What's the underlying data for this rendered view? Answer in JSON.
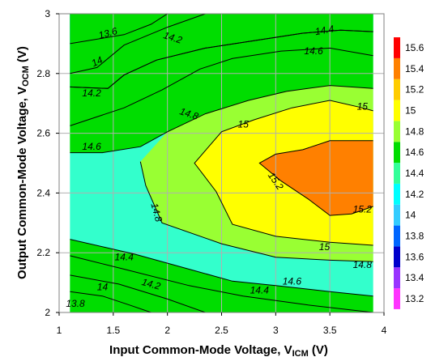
{
  "chart_data": {
    "type": "heatmap",
    "subtype": "filled-contour",
    "title": "",
    "xlabel": {
      "main": "Input Common-Mode Voltage, V",
      "sub": "ICM",
      "unit": " (V)"
    },
    "ylabel": {
      "main": "Output Common-Mode Voltage, V",
      "sub": "OCM",
      "unit": " (V)"
    },
    "xlim": [
      1,
      4
    ],
    "ylim": [
      2,
      3
    ],
    "data_xlim": [
      1.1,
      3.9
    ],
    "x_ticks": [
      "1",
      "1.5",
      "2",
      "2.5",
      "3",
      "3.5",
      "4"
    ],
    "y_ticks": [
      "2",
      "2.2",
      "2.4",
      "2.6",
      "2.8",
      "3"
    ],
    "grid": true,
    "colorbar": {
      "position": "right",
      "levels": [
        13.2,
        13.4,
        13.6,
        13.8,
        14,
        14.2,
        14.4,
        14.6,
        14.8,
        15,
        15.2,
        15.4,
        15.6
      ],
      "tick_labels": [
        "13.2",
        "13.4",
        "13.6",
        "13.8",
        "14",
        "14.2",
        "14.4",
        "14.6",
        "14.8",
        "15",
        "15.2",
        "15.4",
        "15.6"
      ],
      "colors": [
        "#ff33ff",
        "#9933ff",
        "#0000cc",
        "#0066ff",
        "#33ccff",
        "#00ffff",
        "#33ff99",
        "#00dd00",
        "#99ff33",
        "#ffff00",
        "#ffcc00",
        "#ff8000",
        "#ff0000"
      ]
    },
    "fill_base_color": "#33ffcc",
    "regions": [
      {
        "level": 13.2,
        "color": "#9933ff",
        "points": [
          [
            1.1,
            3
          ],
          [
            1.4,
            3
          ],
          [
            1.1,
            2.95
          ]
        ]
      },
      {
        "level": 13.4,
        "color": "#0000cc",
        "points": [
          [
            1.1,
            3
          ],
          [
            2.0,
            3
          ],
          [
            1.85,
            2.965
          ],
          [
            1.6,
            2.93
          ],
          [
            1.1,
            2.9
          ]
        ]
      },
      {
        "level": 13.8,
        "color": "#0066ff",
        "points": [
          [
            1.1,
            3
          ],
          [
            2.35,
            3
          ],
          [
            2.0,
            2.955
          ],
          [
            1.6,
            2.895
          ],
          [
            1.35,
            2.82
          ],
          [
            1.1,
            2.8
          ]
        ]
      },
      {
        "level": 14.0,
        "color": "#33ccff",
        "points": [
          [
            1.1,
            3
          ],
          [
            3.9,
            3
          ],
          [
            3.9,
            2.94
          ],
          [
            3.6,
            2.945
          ],
          [
            3.25,
            2.935
          ],
          [
            2.8,
            2.91
          ],
          [
            2.35,
            2.885
          ],
          [
            1.9,
            2.845
          ],
          [
            1.6,
            2.795
          ],
          [
            1.45,
            2.75
          ],
          [
            1.1,
            2.755
          ]
        ]
      },
      {
        "level": 14.2,
        "color": "#00ffff",
        "points": [
          [
            1.1,
            3
          ],
          [
            3.9,
            3
          ],
          [
            3.9,
            2.94
          ],
          [
            3.6,
            2.945
          ],
          [
            3.25,
            2.935
          ],
          [
            2.8,
            2.91
          ],
          [
            2.35,
            2.885
          ],
          [
            1.9,
            2.845
          ],
          [
            1.6,
            2.795
          ],
          [
            1.45,
            2.75
          ],
          [
            1.1,
            2.755
          ]
        ]
      },
      {
        "level": 14.4,
        "color": "#33ff99",
        "points": [
          [
            1.1,
            3
          ],
          [
            3.9,
            3
          ],
          [
            3.9,
            2.86
          ],
          [
            3.5,
            2.885
          ],
          [
            3.05,
            2.875
          ],
          [
            2.6,
            2.85
          ],
          [
            2.3,
            2.815
          ],
          [
            1.95,
            2.745
          ],
          [
            1.6,
            2.685
          ],
          [
            1.1,
            2.625
          ]
        ]
      },
      {
        "level": 14.6,
        "color": "#00dd00",
        "points": [
          [
            1.1,
            3
          ],
          [
            3.9,
            3
          ],
          [
            3.9,
            2.75
          ],
          [
            3.5,
            2.76
          ],
          [
            3.1,
            2.74
          ],
          [
            2.75,
            2.71
          ],
          [
            2.35,
            2.665
          ],
          [
            2.0,
            2.605
          ],
          [
            1.75,
            2.555
          ],
          [
            1.4,
            2.535
          ],
          [
            1.1,
            2.535
          ],
          [
            1.1,
            2.245
          ],
          [
            1.7,
            2.195
          ],
          [
            2.2,
            2.145
          ],
          [
            2.6,
            2.105
          ],
          [
            3.0,
            2.09
          ],
          [
            3.5,
            2.07
          ],
          [
            3.9,
            2.055
          ],
          [
            3.9,
            2.0
          ],
          [
            1.1,
            2.0
          ]
        ]
      },
      {
        "level": 14.8,
        "color": "#99ff33",
        "points": [
          [
            3.9,
            2.75
          ],
          [
            3.5,
            2.76
          ],
          [
            3.1,
            2.74
          ],
          [
            2.75,
            2.71
          ],
          [
            2.35,
            2.665
          ],
          [
            2.0,
            2.605
          ],
          [
            1.75,
            2.505
          ],
          [
            1.8,
            2.425
          ],
          [
            1.95,
            2.3
          ],
          [
            2.5,
            2.23
          ],
          [
            3.0,
            2.185
          ],
          [
            3.5,
            2.175
          ],
          [
            3.9,
            2.17
          ]
        ]
      },
      {
        "level": 15.0,
        "color": "#ffff00",
        "points": [
          [
            3.9,
            2.675
          ],
          [
            3.8,
            2.685
          ],
          [
            3.5,
            2.71
          ],
          [
            3.15,
            2.685
          ],
          [
            2.8,
            2.645
          ],
          [
            2.5,
            2.605
          ],
          [
            2.25,
            2.5
          ],
          [
            2.45,
            2.405
          ],
          [
            2.6,
            2.295
          ],
          [
            3.0,
            2.255
          ],
          [
            3.5,
            2.235
          ],
          [
            3.9,
            2.225
          ]
        ]
      },
      {
        "level": 15.2,
        "color": "#ff8000",
        "points": [
          [
            2.85,
            2.5
          ],
          [
            3.0,
            2.53
          ],
          [
            3.25,
            2.545
          ],
          [
            3.5,
            2.575
          ],
          [
            3.9,
            2.575
          ],
          [
            3.9,
            2.355
          ],
          [
            3.7,
            2.33
          ],
          [
            3.5,
            2.325
          ],
          [
            3.3,
            2.38
          ],
          [
            3.05,
            2.44
          ]
        ]
      }
    ],
    "contour_lines": [
      {
        "level": 13.6,
        "points": [
          [
            1.1,
            2.9
          ],
          [
            1.6,
            2.93
          ],
          [
            1.85,
            2.965
          ],
          [
            2.0,
            3
          ]
        ]
      },
      {
        "level": 13.8,
        "points": [
          [
            1.1,
            2.8
          ],
          [
            1.35,
            2.82
          ],
          [
            1.6,
            2.895
          ],
          [
            2.0,
            2.955
          ],
          [
            2.35,
            3
          ]
        ]
      },
      {
        "level": 14.0,
        "points": [
          [
            1.1,
            2.755
          ],
          [
            1.45,
            2.75
          ],
          [
            1.6,
            2.795
          ],
          [
            1.9,
            2.845
          ],
          [
            2.35,
            2.885
          ],
          [
            2.8,
            2.91
          ],
          [
            3.25,
            2.935
          ],
          [
            3.6,
            2.945
          ],
          [
            3.9,
            2.94
          ]
        ]
      },
      {
        "level": 14.2,
        "points": [
          [
            1.1,
            2.755
          ],
          [
            1.45,
            2.75
          ],
          [
            1.6,
            2.795
          ],
          [
            1.9,
            2.845
          ],
          [
            2.35,
            2.885
          ],
          [
            2.8,
            2.91
          ],
          [
            3.25,
            2.935
          ],
          [
            3.6,
            2.945
          ],
          [
            3.9,
            2.94
          ]
        ]
      },
      {
        "level": 14.4,
        "points": [
          [
            1.1,
            2.625
          ],
          [
            1.6,
            2.685
          ],
          [
            1.95,
            2.745
          ],
          [
            2.3,
            2.815
          ],
          [
            2.6,
            2.85
          ],
          [
            3.05,
            2.875
          ],
          [
            3.5,
            2.885
          ],
          [
            3.9,
            2.86
          ]
        ]
      },
      {
        "level": 14.6,
        "points": [
          [
            1.1,
            2.535
          ],
          [
            1.4,
            2.535
          ],
          [
            1.75,
            2.555
          ],
          [
            2.0,
            2.605
          ],
          [
            2.35,
            2.665
          ],
          [
            2.75,
            2.71
          ],
          [
            3.1,
            2.74
          ],
          [
            3.5,
            2.76
          ],
          [
            3.9,
            2.75
          ]
        ]
      },
      {
        "level": 14.8,
        "points": [
          [
            1.75,
            2.505
          ],
          [
            1.8,
            2.425
          ],
          [
            1.95,
            2.3
          ],
          [
            2.5,
            2.23
          ],
          [
            3.0,
            2.185
          ],
          [
            3.5,
            2.175
          ],
          [
            3.9,
            2.17
          ]
        ]
      },
      {
        "level": 15.0,
        "points": [
          [
            3.9,
            2.675
          ],
          [
            3.8,
            2.685
          ],
          [
            3.5,
            2.71
          ],
          [
            3.15,
            2.685
          ],
          [
            2.8,
            2.645
          ],
          [
            2.5,
            2.605
          ],
          [
            2.25,
            2.5
          ],
          [
            2.45,
            2.405
          ],
          [
            2.6,
            2.295
          ],
          [
            3.0,
            2.255
          ],
          [
            3.5,
            2.235
          ],
          [
            3.9,
            2.225
          ]
        ]
      },
      {
        "level": 15.2,
        "points": [
          [
            3.9,
            2.575
          ],
          [
            3.5,
            2.575
          ],
          [
            3.25,
            2.545
          ],
          [
            3.0,
            2.53
          ],
          [
            2.85,
            2.5
          ],
          [
            3.05,
            2.44
          ],
          [
            3.3,
            2.38
          ],
          [
            3.5,
            2.325
          ],
          [
            3.7,
            2.33
          ],
          [
            3.9,
            2.355
          ]
        ]
      },
      {
        "level": 14.4,
        "points": [
          [
            1.1,
            2.245
          ],
          [
            1.7,
            2.195
          ],
          [
            2.2,
            2.145
          ],
          [
            2.6,
            2.105
          ],
          [
            3.0,
            2.09
          ],
          [
            3.5,
            2.07
          ],
          [
            3.9,
            2.055
          ]
        ]
      },
      {
        "level": 14.2,
        "points": [
          [
            1.1,
            2.19
          ],
          [
            1.6,
            2.145
          ],
          [
            2.2,
            2.09
          ],
          [
            2.7,
            2.055
          ],
          [
            3.3,
            2.025
          ],
          [
            3.9,
            2.0
          ]
        ]
      },
      {
        "level": 14.0,
        "points": [
          [
            1.1,
            2.125
          ],
          [
            1.55,
            2.095
          ],
          [
            2.0,
            2.045
          ],
          [
            2.35,
            2.0
          ]
        ]
      },
      {
        "level": 13.8,
        "points": [
          [
            1.1,
            2.07
          ],
          [
            1.4,
            2.055
          ],
          [
            1.65,
            2.025
          ],
          [
            1.85,
            2.0
          ]
        ]
      }
    ],
    "annotations": [
      {
        "text": "13.6",
        "x": 1.45,
        "y": 2.935,
        "rotate": -15
      },
      {
        "text": "14",
        "x": 1.35,
        "y": 2.84,
        "rotate": -25
      },
      {
        "text": "14.2",
        "x": 2.05,
        "y": 2.92,
        "rotate": 18
      },
      {
        "text": "14.2",
        "x": 1.3,
        "y": 2.735,
        "rotate": 0
      },
      {
        "text": "14.4",
        "x": 3.45,
        "y": 2.945,
        "rotate": -10
      },
      {
        "text": "14.6",
        "x": 3.35,
        "y": 2.875,
        "rotate": 0
      },
      {
        "text": "14.8",
        "x": 2.2,
        "y": 2.665,
        "rotate": 18
      },
      {
        "text": "15",
        "x": 2.7,
        "y": 2.63,
        "rotate": 0
      },
      {
        "text": "15",
        "x": 3.8,
        "y": 2.69,
        "rotate": 0
      },
      {
        "text": "14.6",
        "x": 1.3,
        "y": 2.555,
        "rotate": 0
      },
      {
        "text": "15.2",
        "x": 3.0,
        "y": 2.44,
        "rotate": 55
      },
      {
        "text": "14.8",
        "x": 1.9,
        "y": 2.335,
        "rotate": 75
      },
      {
        "text": "15.2",
        "x": 3.8,
        "y": 2.345,
        "rotate": 0
      },
      {
        "text": "15",
        "x": 3.45,
        "y": 2.22,
        "rotate": 0
      },
      {
        "text": "14.8",
        "x": 3.8,
        "y": 2.16,
        "rotate": 0
      },
      {
        "text": "14.4",
        "x": 1.6,
        "y": 2.185,
        "rotate": 0
      },
      {
        "text": "14.6",
        "x": 3.15,
        "y": 2.105,
        "rotate": 0
      },
      {
        "text": "14.2",
        "x": 1.85,
        "y": 2.095,
        "rotate": 15
      },
      {
        "text": "14.4",
        "x": 2.85,
        "y": 2.075,
        "rotate": 0
      },
      {
        "text": "14",
        "x": 1.4,
        "y": 2.085,
        "rotate": 0
      },
      {
        "text": "13.8",
        "x": 1.15,
        "y": 2.03,
        "rotate": 0
      }
    ]
  }
}
